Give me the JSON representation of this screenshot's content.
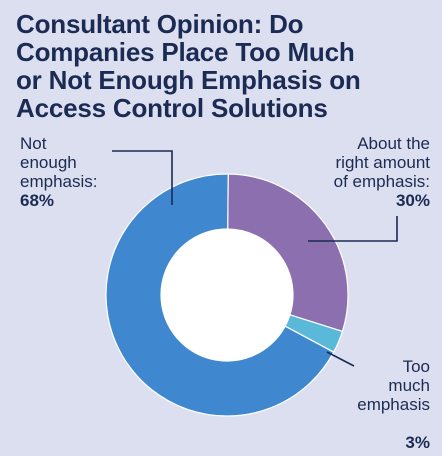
{
  "title_lines": [
    "Consultant Opinion: Do",
    "Companies Place Too Much",
    "or Not Enough Emphasis on",
    "Access Control Solutions"
  ],
  "chart_data": {
    "type": "pie",
    "title": "Consultant Opinion: Do Companies Place Too Much or Not Enough Emphasis on Access Control Solutions",
    "donut": true,
    "slices": [
      {
        "label": "About the right amount of emphasis",
        "value": 30,
        "display": "30%",
        "color": "#8b6fae"
      },
      {
        "label": "Too much emphasis",
        "value": 3,
        "display": "3%",
        "color": "#5ab8d8"
      },
      {
        "label": "Not enough emphasis",
        "value": 68,
        "display": "68%",
        "color": "#3f87cf"
      }
    ]
  },
  "labels": {
    "not_enough": {
      "lines": [
        "Not",
        "enough",
        "emphasis:"
      ],
      "pct": "68%"
    },
    "right_amount": {
      "lines": [
        "About the",
        "right amount",
        "of emphasis:"
      ],
      "pct": "30%"
    },
    "too_much": {
      "lines": [
        "Too",
        "much",
        "emphasis"
      ],
      "pct": "3%"
    }
  },
  "colors": {
    "background": "#dcdfef",
    "text": "#1b2b53",
    "leader": "#1b2b53"
  }
}
